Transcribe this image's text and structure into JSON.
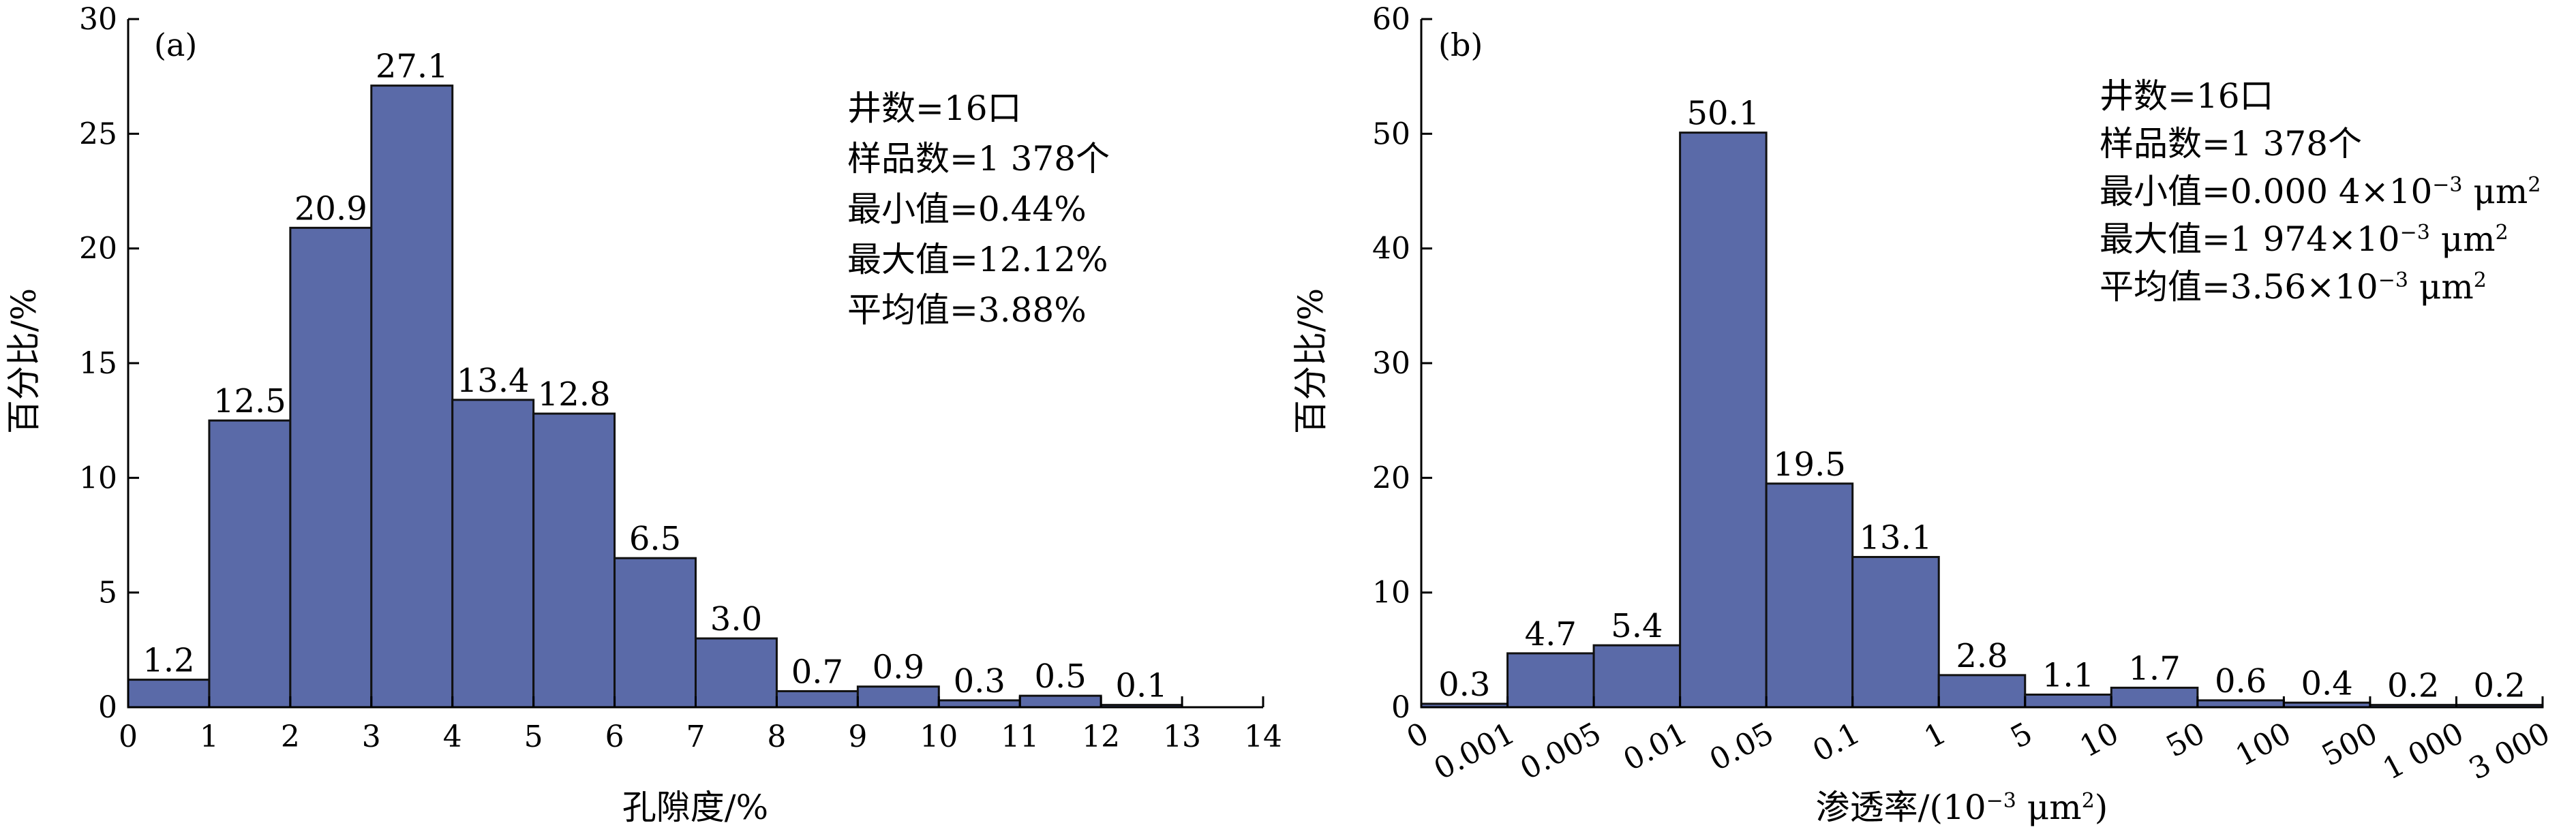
{
  "colors": {
    "bar_fill": "#5a6aa8",
    "bar_stroke": "#111111",
    "axis": "#000000"
  },
  "chart_data": [
    {
      "type": "bar",
      "panel_label": "(a)",
      "xlabel": "孔隙度/%",
      "ylabel": "百分比/%",
      "ylim": [
        0,
        30
      ],
      "y_ticks": [
        0,
        5,
        10,
        15,
        20,
        25,
        30
      ],
      "x_ticks": [
        "0",
        "1",
        "2",
        "3",
        "4",
        "5",
        "6",
        "7",
        "8",
        "9",
        "10",
        "11",
        "12",
        "13",
        "14"
      ],
      "categories": [
        "0-1",
        "1-2",
        "2-3",
        "3-4",
        "4-5",
        "5-6",
        "6-7",
        "7-8",
        "8-9",
        "9-10",
        "10-11",
        "11-12",
        "12-13"
      ],
      "values": [
        1.2,
        12.5,
        20.9,
        27.1,
        13.4,
        12.8,
        6.5,
        3.0,
        0.7,
        0.9,
        0.3,
        0.5,
        0.1
      ],
      "value_labels": [
        "1.2",
        "12.5",
        "20.9",
        "27.1",
        "13.4",
        "12.8",
        "6.5",
        "3.0",
        "0.7",
        "0.9",
        "0.3",
        "0.5",
        "0.1"
      ],
      "annotations": [
        "井数=16口",
        "样品数=1 378个",
        "最小值=0.44%",
        "最大值=12.12%",
        "平均值=3.88%"
      ]
    },
    {
      "type": "bar",
      "panel_label": "(b)",
      "xlabel": "渗透率/(10⁻³ μm²)",
      "ylabel": "百分比/%",
      "ylim": [
        0,
        60
      ],
      "y_ticks": [
        0,
        10,
        20,
        30,
        40,
        50,
        60
      ],
      "x_ticks": [
        "0",
        "0.001",
        "0.005",
        "0.01",
        "0.05",
        "0.1",
        "1",
        "5",
        "10",
        "50",
        "100",
        "500",
        "1 000",
        "3 000"
      ],
      "categories": [
        "0-0.001",
        "0.001-0.005",
        "0.005-0.01",
        "0.01-0.05",
        "0.05-0.1",
        "0.1-1",
        "1-5",
        "5-10",
        "10-50",
        "50-100",
        "100-500",
        "500-1 000",
        "1 000-3 000"
      ],
      "values": [
        0.3,
        4.7,
        5.4,
        50.1,
        19.5,
        13.1,
        2.8,
        1.1,
        1.7,
        0.6,
        0.4,
        0.2,
        0.2
      ],
      "value_labels": [
        "0.3",
        "4.7",
        "5.4",
        "50.1",
        "19.5",
        "13.1",
        "2.8",
        "1.1",
        "1.7",
        "0.6",
        "0.4",
        "0.2",
        "0.2"
      ],
      "annotations": [
        "井数=16口",
        "样品数=1 378个",
        "最小值=0.000 4×10⁻³ μm²",
        "最大值=1 974×10⁻³ μm²",
        "平均值=3.56×10⁻³ μm²"
      ]
    }
  ]
}
